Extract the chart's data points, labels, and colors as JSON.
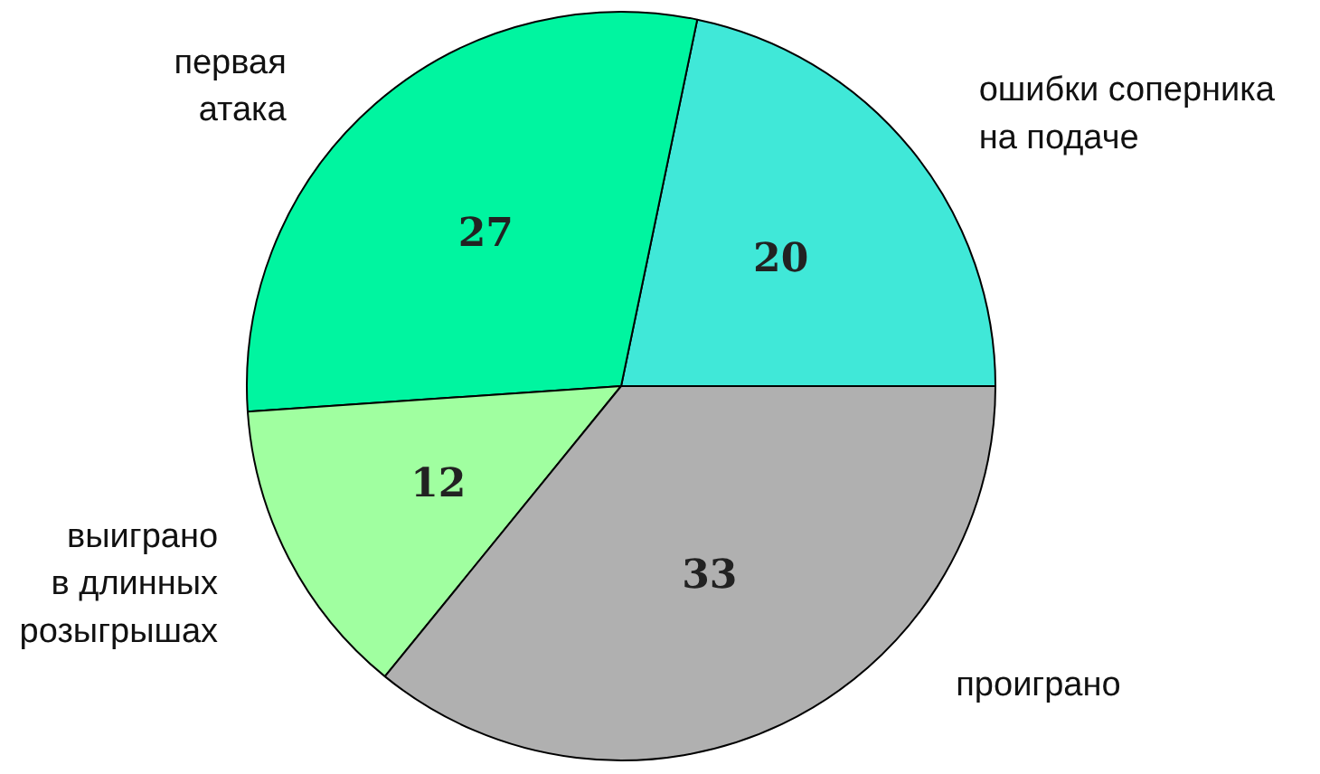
{
  "chart_data": {
    "type": "pie",
    "categories": [
      "ошибки соперника\nна подаче",
      "первая\nатака",
      "выиграно\nв длинных\nрозыгрышах",
      "проиграно"
    ],
    "values": [
      20,
      27,
      12,
      33
    ],
    "colors": [
      "#40e8d8",
      "#00f5a0",
      "#a0ffa0",
      "#b0b0b0"
    ],
    "data_labels": true
  }
}
